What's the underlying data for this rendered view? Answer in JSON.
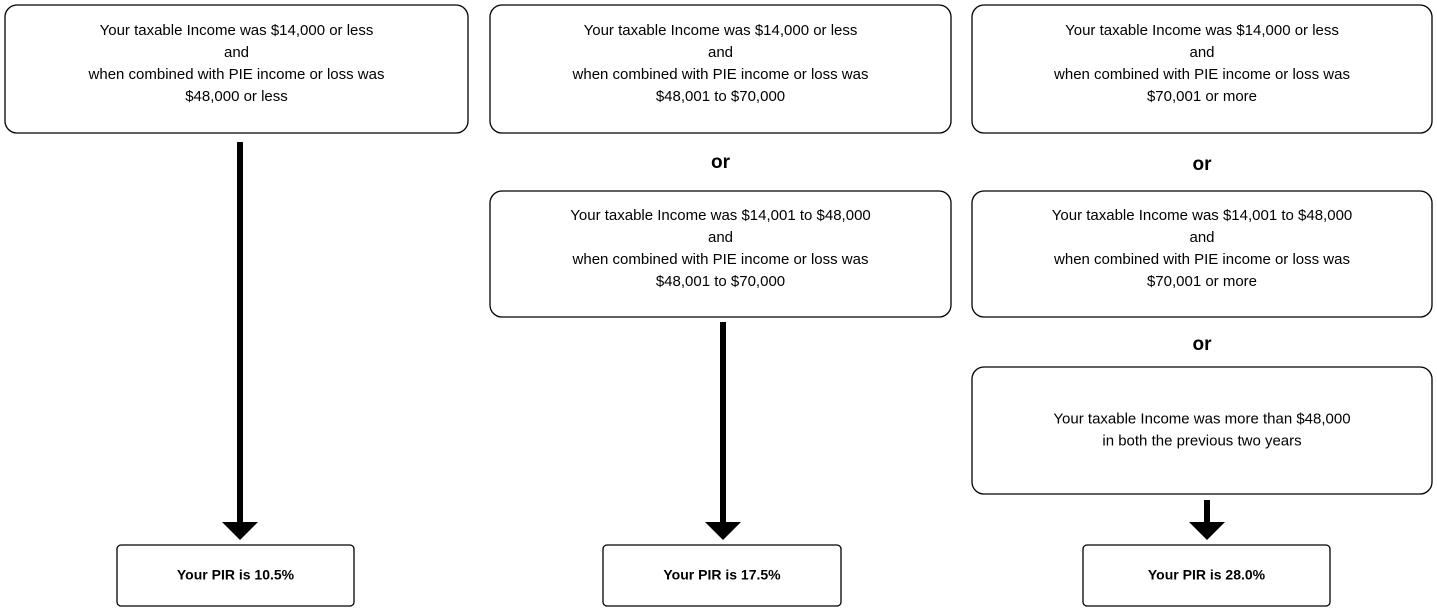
{
  "columns": [
    {
      "boxes": [
        {
          "lines": [
            "Your taxable Income was $14,000 or less",
            "and",
            "when combined with PIE income or loss was",
            "$48,000 or less"
          ]
        }
      ],
      "separators": [],
      "result": "Your PIR is 10.5%"
    },
    {
      "boxes": [
        {
          "lines": [
            "Your taxable Income was $14,000 or less",
            "and",
            "when combined with PIE income or loss was",
            "$48,001 to $70,000"
          ]
        },
        {
          "lines": [
            "Your taxable Income was $14,001 to $48,000",
            "and",
            "when combined with PIE income or loss was",
            "$48,001 to $70,000"
          ]
        }
      ],
      "separators": [
        "or"
      ],
      "result": "Your PIR is 17.5%"
    },
    {
      "boxes": [
        {
          "lines": [
            "Your taxable Income was $14,000 or less",
            "and",
            "when combined with PIE income or loss was",
            "$70,001 or more"
          ]
        },
        {
          "lines": [
            "Your taxable Income was $14,001 to $48,000",
            "and",
            "when combined with PIE income or loss was",
            "$70,001 or more"
          ]
        },
        {
          "lines": [
            "Your taxable Income was more than $48,000",
            "in both the previous two years"
          ]
        }
      ],
      "separators": [
        "or",
        "or"
      ],
      "result": "Your PIR is 28.0%"
    }
  ]
}
